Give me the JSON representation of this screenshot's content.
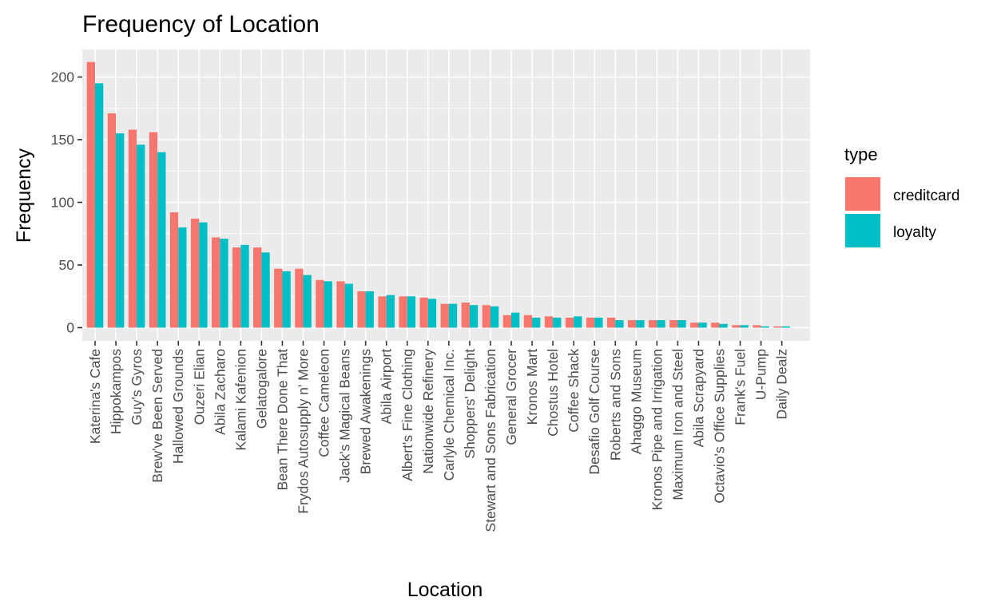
{
  "chart_data": {
    "type": "bar",
    "title": "Frequency of Location",
    "xlabel": "Location",
    "ylabel": "Frequency",
    "ylim": [
      0,
      220
    ],
    "yticks": [
      0,
      50,
      100,
      150,
      200
    ],
    "grid": true,
    "legend": {
      "title": "type",
      "placement": "right"
    },
    "categories": [
      "Katerina's Cafe",
      "Hippokampos",
      "Guy's Gyros",
      "Brew've Been Served",
      "Hallowed Grounds",
      "Ouzeri Elian",
      "Abila Zacharo",
      "Kalami Kafenion",
      "Gelatogalore",
      "Bean There Done That",
      "Frydos Autosupply n' More",
      "Coffee Cameleon",
      "Jack's Magical Beans",
      "Brewed Awakenings",
      "Abila Airport",
      "Albert's Fine Clothing",
      "Nationwide Refinery",
      "Carlyle Chemical Inc.",
      "Shoppers' Delight",
      "Stewart and Sons Fabrication",
      "General Grocer",
      "Kronos Mart",
      "Chostus Hotel",
      "Coffee Shack",
      "Desafio Golf Course",
      "Roberts and Sons",
      "Ahaggo Museum",
      "Kronos Pipe and Irrigation",
      "Maximum Iron and Steel",
      "Abila Scrapyard",
      "Octavio's Office Supplies",
      "Frank's Fuel",
      "U-Pump",
      "Daily Dealz"
    ],
    "series": [
      {
        "name": "creditcard",
        "color": "#F8766D",
        "values": [
          212,
          171,
          158,
          156,
          92,
          87,
          72,
          64,
          64,
          47,
          47,
          38,
          37,
          29,
          25,
          25,
          24,
          19,
          20,
          18,
          10,
          10,
          9,
          8,
          8,
          8,
          6,
          6,
          6,
          4,
          4,
          2,
          2,
          1
        ]
      },
      {
        "name": "loyalty",
        "color": "#00BFC4",
        "values": [
          195,
          155,
          146,
          140,
          80,
          84,
          71,
          66,
          60,
          45,
          42,
          37,
          35,
          29,
          26,
          25,
          23,
          19,
          18,
          17,
          12,
          8,
          8,
          9,
          8,
          6,
          6,
          6,
          6,
          4,
          3,
          2,
          1,
          1
        ]
      }
    ]
  }
}
